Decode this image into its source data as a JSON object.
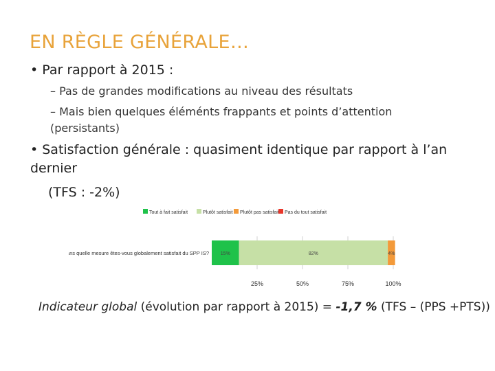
{
  "slide": {
    "title": "EN RÈGLE GÉNÉRALE…",
    "bullet1": "• Par rapport à 2015 :",
    "sub1": "– Pas de grandes modifications au niveau des résultats",
    "sub2": "– Mais bien quelques éléménts frappants et points d’attention (persistants)",
    "bullet2": "• Satisfaction générale : quasiment identique par rapport à l’an dernier",
    "bullet2_extra": "(TFS : -2%)",
    "footer_label": "Indicateur global",
    "footer_mid": " (évolution par rapport à 2015) = ",
    "footer_value": "-1,7 %",
    "footer_tail": " (TFS – (PPS +PTS))"
  },
  "chart_data": {
    "type": "bar",
    "orientation": "horizontal",
    "stacked": true,
    "categories": [
      "Dans quelle mesure êtes-vous globalement satisfait du SPP IS?"
    ],
    "series": [
      {
        "name": "Tout à fait satisfait",
        "values": [
          15
        ],
        "label": "15%",
        "color": "#1fc24a"
      },
      {
        "name": "Plutôt satisfait",
        "values": [
          82
        ],
        "label": "82%",
        "color": "#c6e0a6"
      },
      {
        "name": "Plutôt pas satisfait",
        "values": [
          4
        ],
        "label": "4%",
        "color": "#f39a3a"
      },
      {
        "name": "Pas du tout satisfait",
        "values": [
          0
        ],
        "label": "",
        "color": "#e8362a"
      }
    ],
    "xticks": [
      "25%",
      "50%",
      "75%",
      "100%"
    ],
    "xlim": [
      0,
      100
    ],
    "legend_position": "top",
    "grid": true
  }
}
